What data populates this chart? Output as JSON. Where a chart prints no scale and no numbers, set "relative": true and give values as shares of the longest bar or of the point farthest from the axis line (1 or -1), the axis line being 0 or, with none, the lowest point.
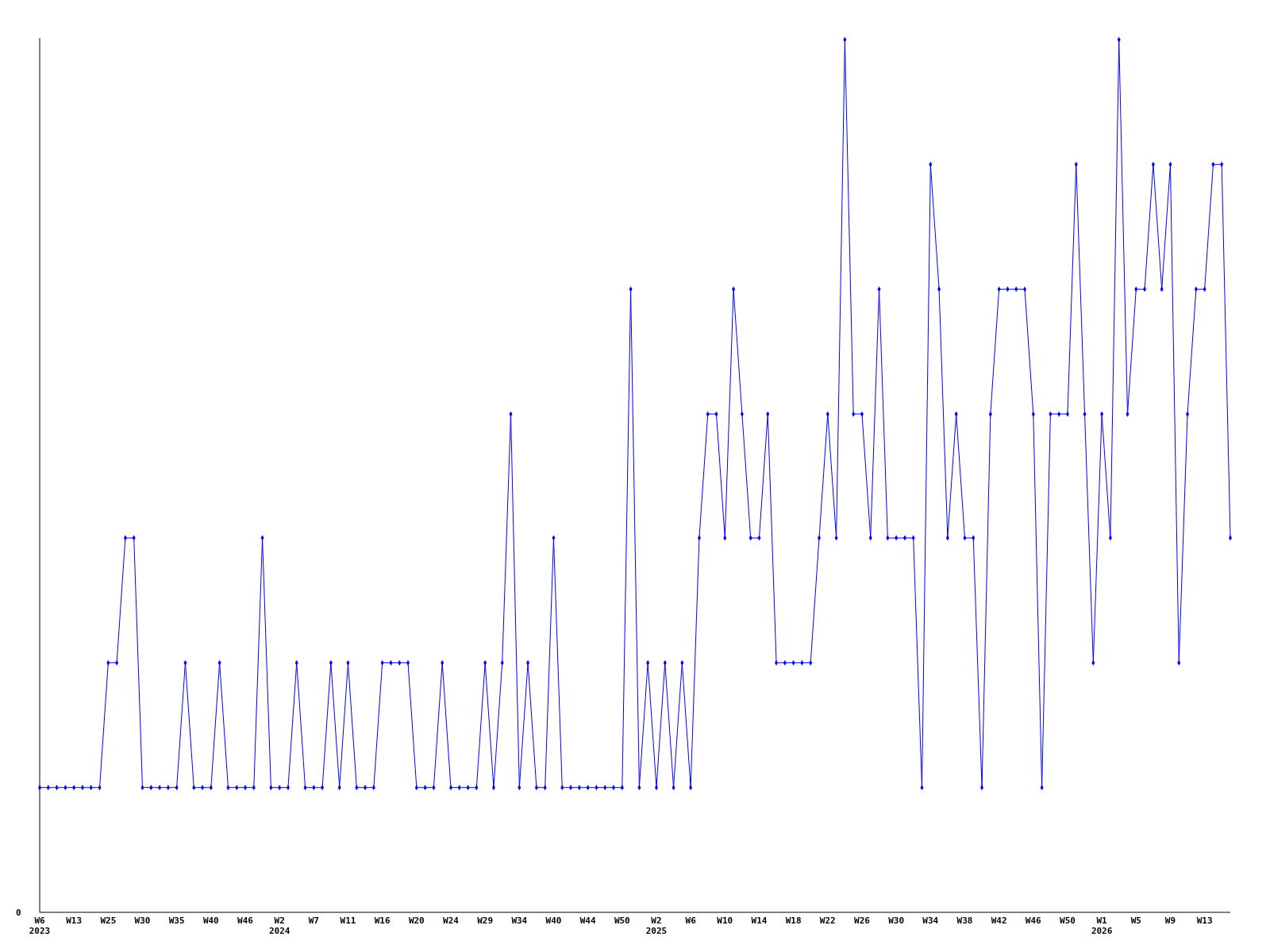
{
  "chart_data": {
    "type": "line",
    "relative": true,
    "marker": "diamond",
    "line_style": "solid",
    "annotations": [
      "0"
    ],
    "categories": [
      "W6\n2023",
      null,
      null,
      null,
      "W13",
      null,
      null,
      null,
      "W25",
      null,
      null,
      null,
      "W30",
      null,
      null,
      null,
      "W35",
      null,
      null,
      null,
      "W40",
      null,
      null,
      null,
      "W46",
      null,
      null,
      null,
      "W2\n2024",
      null,
      null,
      null,
      "W7",
      null,
      null,
      null,
      "W11",
      null,
      null,
      null,
      "W16",
      null,
      null,
      null,
      "W20",
      null,
      null,
      null,
      "W24",
      null,
      null,
      null,
      "W29",
      null,
      null,
      null,
      "W34",
      null,
      null,
      null,
      "W40",
      null,
      null,
      null,
      "W44",
      null,
      null,
      null,
      "W50",
      null,
      null,
      null,
      "W2\n2025",
      null,
      null,
      null,
      "W6",
      null,
      null,
      null,
      "W10",
      null,
      null,
      null,
      "W14",
      null,
      null,
      null,
      "W18",
      null,
      null,
      null,
      "W22",
      null,
      null,
      null,
      "W26",
      null,
      null,
      null,
      "W30",
      null,
      null,
      null,
      "W34",
      null,
      null,
      null,
      "W38",
      null,
      null,
      null,
      "W42",
      null,
      null,
      null,
      "W46",
      null,
      null,
      null,
      "W50",
      null,
      null,
      null,
      "W1\n2026",
      null,
      null,
      null,
      "W5",
      null,
      null,
      null,
      "W9",
      null,
      null,
      null,
      "W13",
      null,
      null,
      null
    ],
    "series": [
      {
        "color": "#0000ff",
        "values": [
          0.143,
          0.143,
          0.143,
          0.143,
          0.143,
          0.143,
          0.143,
          0.143,
          0.286,
          0.286,
          0.429,
          0.429,
          0.143,
          0.143,
          0.143,
          0.143,
          0.143,
          0.286,
          0.143,
          0.143,
          0.143,
          0.286,
          0.143,
          0.143,
          0.143,
          0.143,
          0.429,
          0.143,
          0.143,
          0.143,
          0.286,
          0.143,
          0.143,
          0.143,
          0.286,
          0.143,
          0.286,
          0.143,
          0.143,
          0.143,
          0.286,
          0.286,
          0.286,
          0.286,
          0.143,
          0.143,
          0.143,
          0.286,
          0.143,
          0.143,
          0.143,
          0.143,
          0.286,
          0.143,
          0.286,
          0.571,
          0.143,
          0.286,
          0.143,
          0.143,
          0.429,
          0.143,
          0.143,
          0.143,
          0.143,
          0.143,
          0.143,
          0.143,
          0.143,
          0.714,
          0.143,
          0.286,
          0.143,
          0.286,
          0.143,
          0.286,
          0.143,
          0.429,
          0.571,
          0.571,
          0.429,
          0.714,
          0.571,
          0.429,
          0.429,
          0.571,
          0.286,
          0.286,
          0.286,
          0.286,
          0.286,
          0.429,
          0.571,
          0.429,
          1,
          0.571,
          0.571,
          0.429,
          0.714,
          0.429,
          0.429,
          0.429,
          0.429,
          0.143,
          0.857,
          0.714,
          0.429,
          0.571,
          0.429,
          0.429,
          0.143,
          0.571,
          0.714,
          0.714,
          0.714,
          0.714,
          0.571,
          0.143,
          0.571,
          0.571,
          0.571,
          0.857,
          0.571,
          0.286,
          0.571,
          0.429,
          1,
          0.571,
          0.714,
          0.714,
          0.857,
          0.714,
          0.857,
          0.286,
          0.571,
          0.714,
          0.714,
          0.857,
          0.857,
          0.429
        ]
      }
    ]
  }
}
